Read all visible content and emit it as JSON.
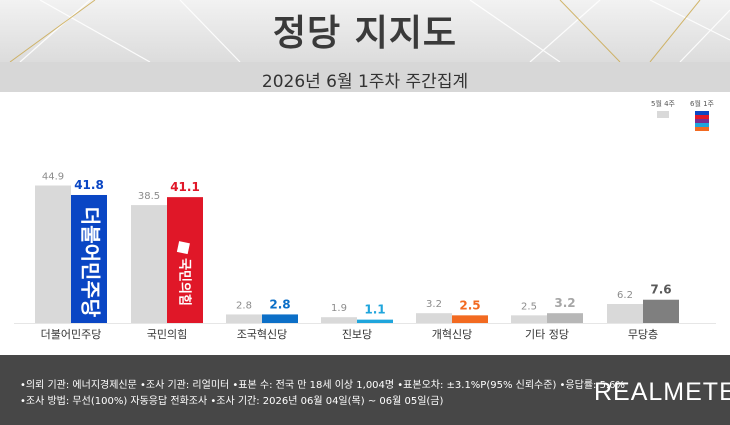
{
  "header": {
    "title": "정당 지지도",
    "subtitle": "2026년 6월 1주차 주간집계"
  },
  "legend": {
    "prev_label": "5월 4주",
    "curr_label": "6월 1주"
  },
  "colors": {
    "prev_bar": "#d9d9d9",
    "prev_value_text": "#8c8c8c",
    "party_colors": [
      "#0a46c4",
      "#e01728",
      "#0c6fc7",
      "#1fa5dc",
      "#f26a21",
      "#b7b7b7",
      "#7f7f7f"
    ],
    "value_text_colors": [
      "#0a46c4",
      "#e01728",
      "#0c6fc7",
      "#1fa5dc",
      "#f26a21",
      "#a6a6a6",
      "#595959"
    ]
  },
  "logos": {
    "democratic": "더불어민주당",
    "ppp": "국민의힘"
  },
  "chart_data": {
    "type": "bar",
    "categories": [
      "더불어민주당",
      "국민의힘",
      "조국혁신당",
      "진보당",
      "개혁신당",
      "기타 정당",
      "무당층"
    ],
    "series": [
      {
        "name": "5월 4주",
        "values": [
          44.9,
          38.5,
          2.8,
          1.9,
          3.2,
          2.5,
          6.2
        ]
      },
      {
        "name": "6월 1주",
        "values": [
          41.8,
          41.1,
          2.8,
          1.1,
          2.5,
          3.2,
          7.6
        ]
      }
    ],
    "ylim": [
      0,
      48
    ],
    "grid": false,
    "legend_position": "top-right",
    "title": "",
    "xlabel": "",
    "ylabel": ""
  },
  "footer": {
    "line1": "•의뢰 기관: 에너지경제신문 •조사 기관: 리얼미터 •표본 수: 전국 만 18세 이상 1,004명 •표본오차: ±3.1%P(95% 신뢰수준) •응답률: 5.6%",
    "line2": "•조사 방법: 무선(100%) 자동응답 전화조사 •조사 기간: 2026년 06월 04일(목) ~ 06월 05일(금)",
    "brand": "REALMETER"
  }
}
